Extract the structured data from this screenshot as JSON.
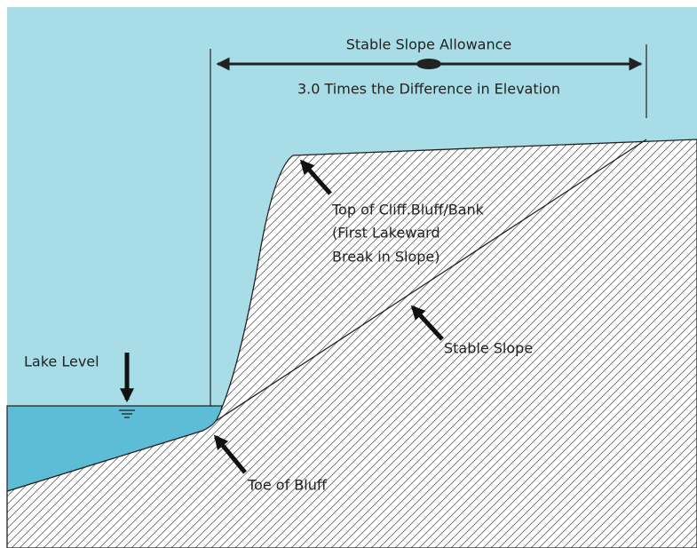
{
  "dimension": {
    "title": "Stable Slope Allowance",
    "description": "3.0 Times the Difference in Elevation"
  },
  "labels": {
    "top_of_bank": [
      "Top of Cliff.Bluff/Bank",
      "(First Lakeward",
      "Break in Slope)"
    ],
    "stable_slope": "Stable Slope",
    "lake_level": "Lake Level",
    "toe_of_bluff": "Toe of Bluff"
  }
}
